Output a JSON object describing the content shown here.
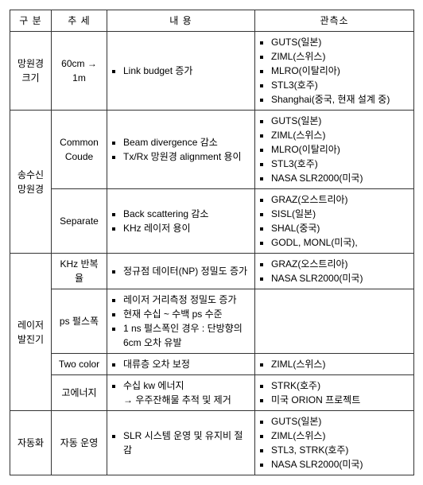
{
  "headers": {
    "c1": "구 분",
    "c2": "추 세",
    "c3": "내 용",
    "c4": "관측소"
  },
  "rows": [
    {
      "cat": "망원경\n크기",
      "catRowspan": 1,
      "trend": "60cm → 1m",
      "content": [
        "Link budget 증가"
      ],
      "obs": [
        "GUTS(일본)",
        "ZIML(스위스)",
        "MLRO(이탈리아)",
        "STL3(호주)",
        "Shanghai(중국, 현재 설계 중)"
      ]
    },
    {
      "cat": "송수신\n망원경",
      "catRowspan": 2,
      "trend": "Common\nCoude",
      "content": [
        "Beam divergence 감소",
        "Tx/Rx 망원경 alignment 용이"
      ],
      "obs": [
        "GUTS(일본)",
        "ZIML(스위스)",
        "MLRO(이탈리아)",
        "STL3(호주)",
        "NASA SLR2000(미국)"
      ]
    },
    {
      "cat": null,
      "catRowspan": 0,
      "trend": "Separate",
      "content": [
        "Back scattering 감소",
        "KHz 레이저 용이"
      ],
      "obs": [
        "GRAZ(오스트리아)",
        "SISL(일본)",
        "SHAL(중국)",
        "GODL, MONL(미국),"
      ]
    },
    {
      "cat": "레이저\n발진기",
      "catRowspan": 4,
      "trend": "KHz 반복율",
      "content": [
        "정규점 데이터(NP) 정밀도 증가"
      ],
      "obs": [
        "GRAZ(오스트리아)",
        "NASA SLR2000(미국)"
      ]
    },
    {
      "cat": null,
      "catRowspan": 0,
      "trend": "ps 펄스폭",
      "content": [
        "레이저 거리측정 정밀도 증가",
        "현재 수십 ~ 수백 ps 수준",
        "1 ns 펄스폭인 경우 : 단방향의 6cm 오차 유발"
      ],
      "obs": []
    },
    {
      "cat": null,
      "catRowspan": 0,
      "trend": "Two color",
      "content": [
        "대류층 오차 보정"
      ],
      "obs": [
        "ZIML(스위스)"
      ]
    },
    {
      "cat": null,
      "catRowspan": 0,
      "trend": "고에너지",
      "content": [
        "수십 kw 에너지\n→ 우주잔해물 추적 및 제거"
      ],
      "obs": [
        "STRK(호주)",
        "미국 ORION 프로젝트"
      ]
    },
    {
      "cat": "자동화",
      "catRowspan": 1,
      "trend": "자동 운영",
      "content": [
        "SLR 시스템 운영 및 유지비 절감"
      ],
      "obs": [
        "GUTS(일본)",
        "ZIML(스위스)",
        "STL3, STRK(호주)",
        "NASA SLR2000(미국)"
      ]
    }
  ]
}
